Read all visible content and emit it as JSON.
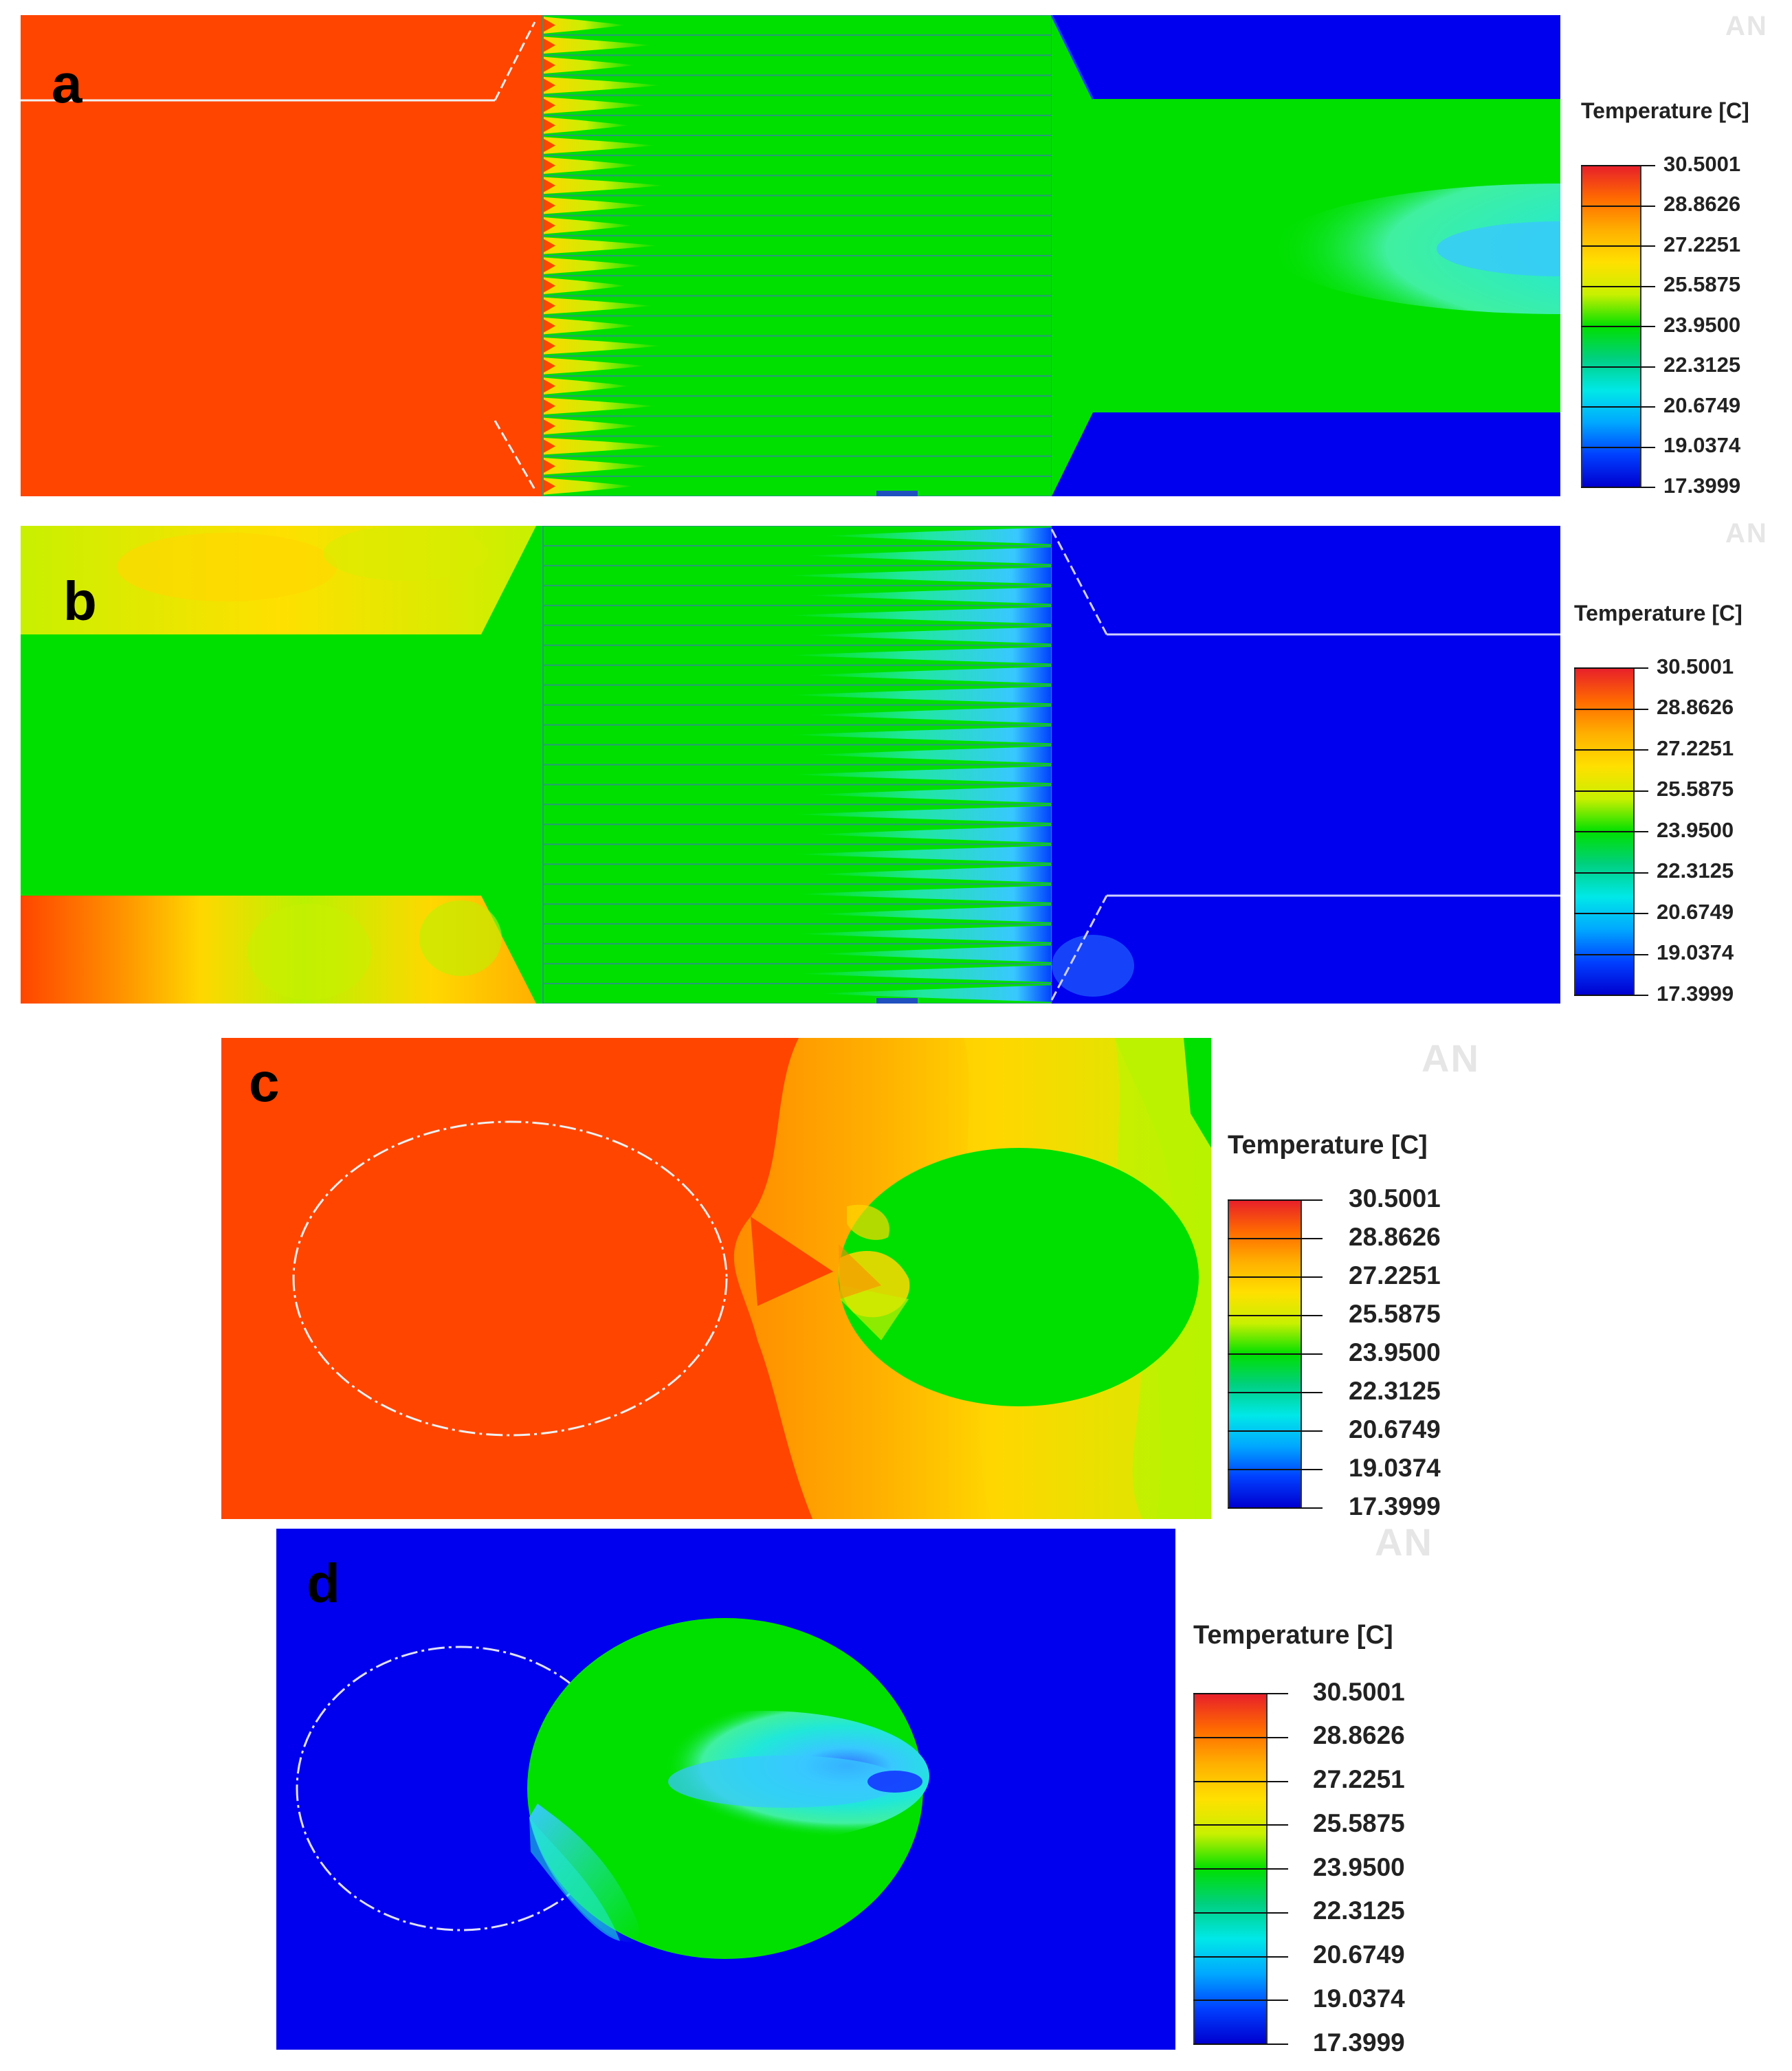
{
  "colors": {
    "hot": "#ff4500",
    "warm_orange": "#ff8c00",
    "yellow": "#ffd700",
    "yellow_green": "#b9f200",
    "green": "#00e000",
    "cyan": "#20e8d8",
    "light_blue": "#38b8ff",
    "cold": "#0000ee",
    "line": "#f0f0f0"
  },
  "panels": [
    {
      "id": "a",
      "label": "a",
      "watermark": "AN"
    },
    {
      "id": "b",
      "label": "b",
      "watermark": "AN"
    },
    {
      "id": "c",
      "label": "c",
      "watermark": "AN"
    },
    {
      "id": "d",
      "label": "d",
      "watermark": "AN"
    }
  ],
  "legend": {
    "title": "Temperature [C]",
    "values": [
      "30.5001",
      "28.8626",
      "27.2251",
      "25.5875",
      "23.9500",
      "22.3125",
      "20.6749",
      "19.0374",
      "17.3999"
    ],
    "gradient_colors": [
      "#e8202a",
      "#ff6a00",
      "#ffb000",
      "#ffe000",
      "#c8f000",
      "#00e000",
      "#00d080",
      "#00e8e8",
      "#00a8ff",
      "#0040ff",
      "#0000d0"
    ]
  }
}
